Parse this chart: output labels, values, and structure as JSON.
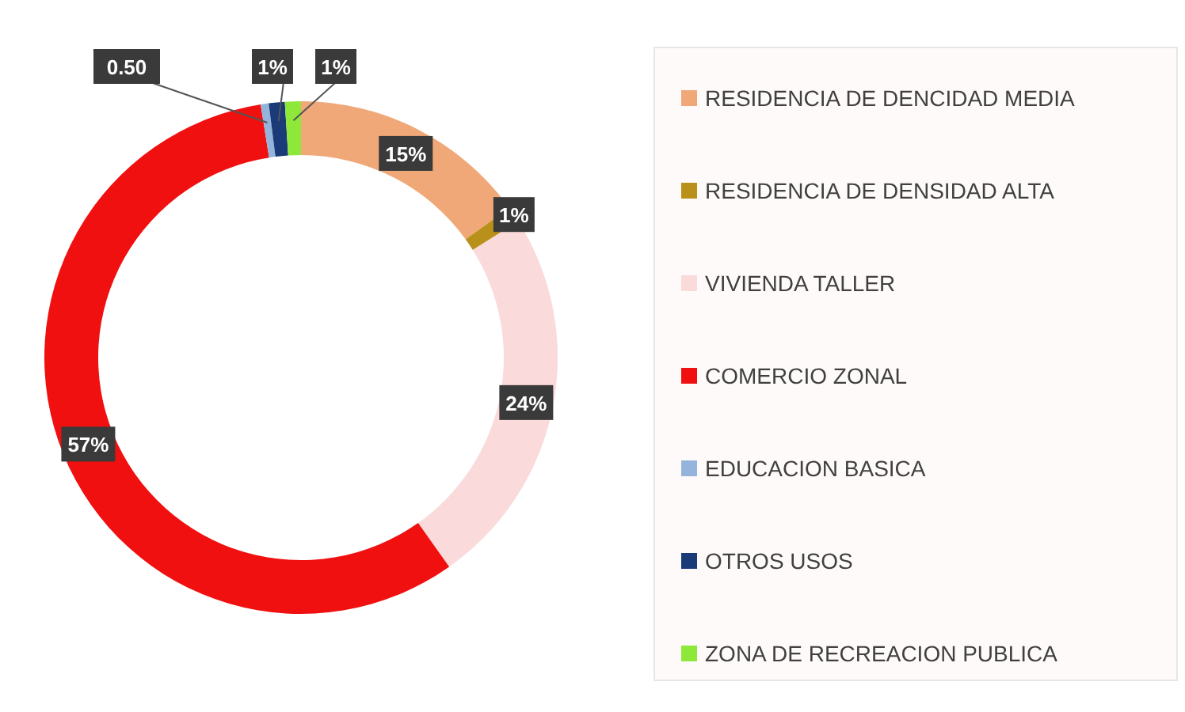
{
  "chart_data": {
    "type": "donut",
    "categories": [
      "RESIDENCIA DE DENCIDAD MEDIA",
      "RESIDENCIA DE DENSIDAD ALTA",
      "VIVIENDA TALLER",
      "COMERCIO ZONAL",
      "EDUCACION BASICA",
      "OTROS USOS",
      "ZONA DE RECREACION PUBLICA"
    ],
    "values": [
      15,
      1,
      24,
      57,
      0.5,
      1,
      1
    ],
    "colors": [
      "#f0a878",
      "#b8901a",
      "#fadada",
      "#f01010",
      "#94b4dc",
      "#1a3a78",
      "#8ee83a"
    ],
    "value_labels": [
      "15%",
      "1%",
      "24%",
      "57%",
      "0.50",
      "1%",
      "1%"
    ],
    "legend": "right"
  }
}
